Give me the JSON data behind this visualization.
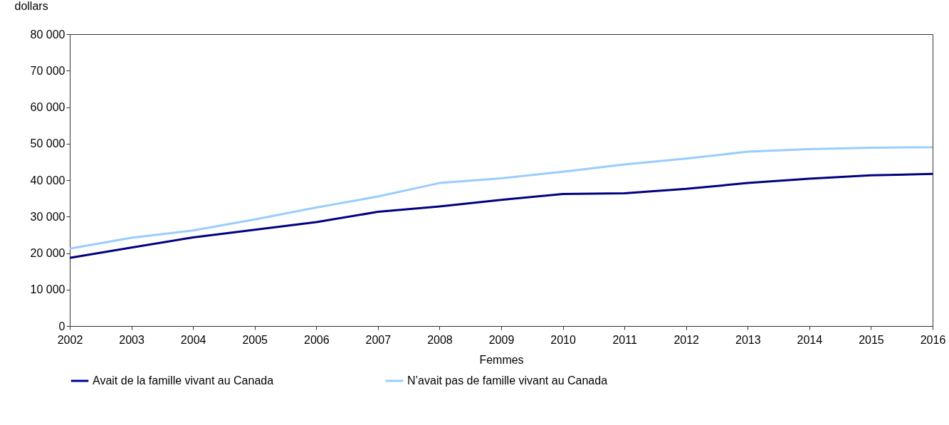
{
  "chart_data": {
    "type": "line",
    "ylabel": "dollars",
    "xlabel": "Femmes",
    "x": [
      2002,
      2003,
      2004,
      2005,
      2006,
      2007,
      2008,
      2009,
      2010,
      2011,
      2012,
      2013,
      2014,
      2015,
      2016
    ],
    "series": [
      {
        "name": "Avait de la famille vivant au Canada",
        "color": "#000080",
        "values": [
          18700,
          21500,
          24300,
          26400,
          28500,
          31300,
          32800,
          34600,
          36200,
          36400,
          37600,
          39200,
          40400,
          41300,
          41700
        ]
      },
      {
        "name": "N’avait pas de famille vivant au Canada",
        "color": "#99ccff",
        "values": [
          21200,
          24200,
          26200,
          29200,
          32500,
          35500,
          39200,
          40500,
          42300,
          44300,
          45900,
          47800,
          48500,
          48900,
          49000
        ]
      }
    ],
    "xlim": [
      2002,
      2016
    ],
    "xticks": [
      2002,
      2003,
      2004,
      2005,
      2006,
      2007,
      2008,
      2009,
      2010,
      2011,
      2012,
      2013,
      2014,
      2015,
      2016
    ],
    "ylim": [
      0,
      80000
    ],
    "yticks": [
      0,
      {
        "value": 10000,
        "label": "10 000"
      },
      {
        "value": 20000,
        "label": "20 000"
      },
      {
        "value": 30000,
        "label": "30 000"
      },
      {
        "value": 40000,
        "label": "40 000"
      },
      {
        "value": 50000,
        "label": "50 000"
      },
      {
        "value": 60000,
        "label": "60 000"
      },
      {
        "value": 70000,
        "label": "70 000"
      },
      {
        "value": 80000,
        "label": "80 000"
      }
    ],
    "grid": false,
    "legend": "bottom",
    "marker": "none",
    "line_style": "solid"
  }
}
